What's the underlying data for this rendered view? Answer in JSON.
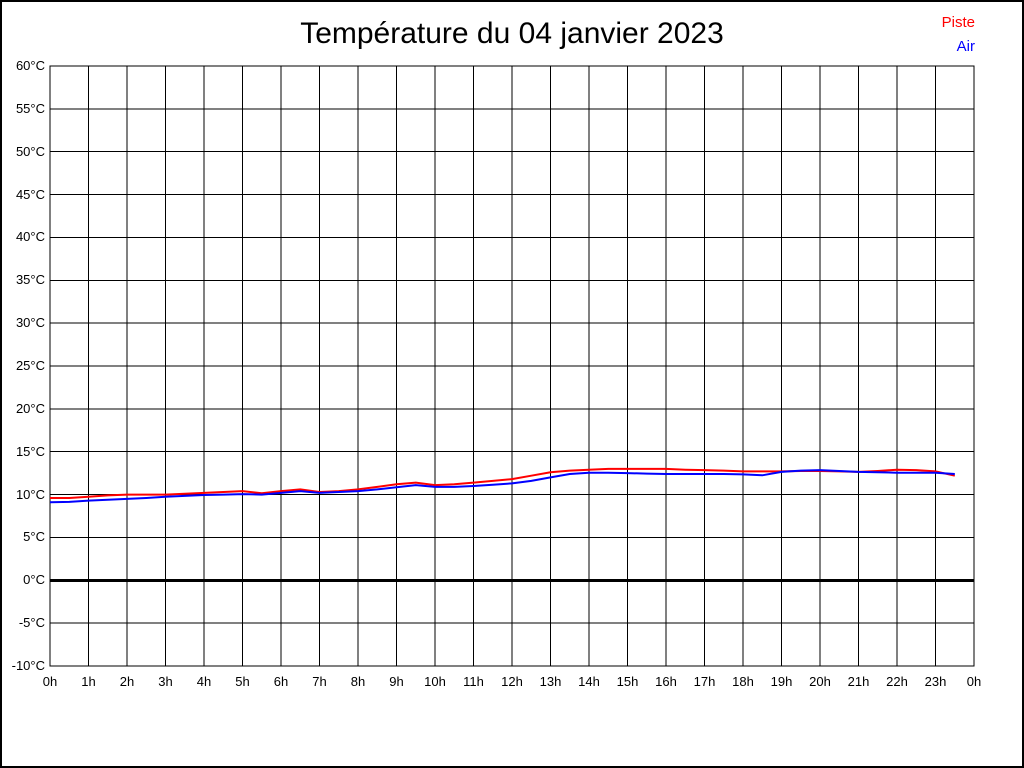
{
  "title": "Température du 04 janvier 2023",
  "legend": {
    "piste_label": "Piste",
    "piste_color": "#ff0000",
    "air_label": "Air",
    "air_color": "#0000ff"
  },
  "chart_data": {
    "type": "line",
    "title": "Température du 04 janvier 2023",
    "xlabel": "",
    "ylabel": "",
    "xlim": [
      0,
      24
    ],
    "ylim": [
      -10,
      60
    ],
    "grid": true,
    "grid_color": "#000000",
    "zero_line": {
      "value": 0,
      "color": "#000000",
      "width": 3
    },
    "legend_position": "top-right",
    "x_tick_hours": [
      0,
      1,
      2,
      3,
      4,
      5,
      6,
      7,
      8,
      9,
      10,
      11,
      12,
      13,
      14,
      15,
      16,
      17,
      18,
      19,
      20,
      21,
      22,
      23,
      24
    ],
    "x_tick_labels": [
      "0h",
      "1h",
      "2h",
      "3h",
      "4h",
      "5h",
      "6h",
      "7h",
      "8h",
      "9h",
      "10h",
      "11h",
      "12h",
      "13h",
      "14h",
      "15h",
      "16h",
      "17h",
      "18h",
      "19h",
      "20h",
      "21h",
      "22h",
      "23h",
      "0h"
    ],
    "y_tick_values": [
      60,
      55,
      50,
      45,
      40,
      35,
      30,
      25,
      20,
      15,
      10,
      5,
      0,
      -5,
      -10
    ],
    "y_tick_labels": [
      "60°C",
      "55°C",
      "50°C",
      "45°C",
      "40°C",
      "35°C",
      "30°C",
      "25°C",
      "20°C",
      "15°C",
      "10°C",
      "5°C",
      "0°C",
      "-5°C",
      "-10°C"
    ],
    "series": [
      {
        "name": "Piste",
        "color": "#ff0000",
        "line_width": 2,
        "start_hour": 0,
        "step_hours": 0.5,
        "values": [
          9.6,
          9.6,
          9.75,
          9.9,
          10.0,
          10.0,
          10.0,
          10.1,
          10.2,
          10.3,
          10.4,
          10.15,
          10.4,
          10.6,
          10.3,
          10.4,
          10.6,
          10.9,
          11.2,
          11.4,
          11.1,
          11.2,
          11.4,
          11.6,
          11.8,
          12.2,
          12.6,
          12.8,
          12.9,
          13.0,
          13.0,
          13.0,
          13.0,
          12.9,
          12.85,
          12.8,
          12.7,
          12.7,
          12.7,
          12.75,
          12.75,
          12.7,
          12.65,
          12.75,
          12.9,
          12.85,
          12.7,
          12.2
        ]
      },
      {
        "name": "Air",
        "color": "#0000ff",
        "line_width": 2,
        "start_hour": 0,
        "step_hours": 0.5,
        "values": [
          9.1,
          9.15,
          9.3,
          9.4,
          9.5,
          9.6,
          9.75,
          9.85,
          9.95,
          10.0,
          10.05,
          10.0,
          10.2,
          10.4,
          10.2,
          10.3,
          10.4,
          10.6,
          10.85,
          11.1,
          10.9,
          10.9,
          11.0,
          11.15,
          11.3,
          11.6,
          12.0,
          12.4,
          12.55,
          12.55,
          12.5,
          12.45,
          12.4,
          12.4,
          12.4,
          12.4,
          12.35,
          12.25,
          12.65,
          12.8,
          12.85,
          12.75,
          12.65,
          12.6,
          12.55,
          12.55,
          12.55,
          12.4
        ]
      }
    ]
  }
}
